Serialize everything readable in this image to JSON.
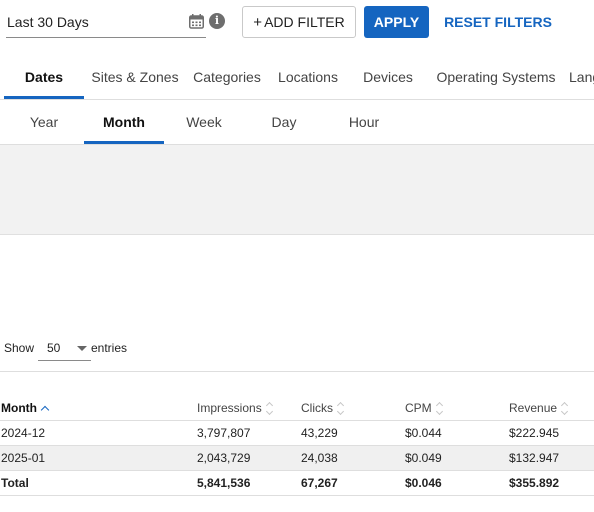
{
  "filters": {
    "date_range": "Last 30 Days",
    "calendar_icon": "calendar-icon",
    "info_icon": "info-icon",
    "info_glyph": "i",
    "add_filter_plus": "+",
    "add_filter_label": "ADD FILTER",
    "apply_label": "APPLY",
    "reset_label": "RESET FILTERS"
  },
  "tabs": [
    {
      "label": "Dates",
      "active": true
    },
    {
      "label": "Sites & Zones"
    },
    {
      "label": "Categories"
    },
    {
      "label": "Locations"
    },
    {
      "label": "Devices"
    },
    {
      "label": "Operating Systems"
    },
    {
      "label": "Lang"
    }
  ],
  "subtabs": [
    {
      "label": "Year"
    },
    {
      "label": "Month",
      "active": true
    },
    {
      "label": "Week"
    },
    {
      "label": "Day"
    },
    {
      "label": "Hour"
    }
  ],
  "entries": {
    "show_label": "Show",
    "value": "50",
    "entries_label": "entries"
  },
  "table": {
    "columns": [
      "Month",
      "Impressions",
      "Clicks",
      "CPM",
      "Revenue"
    ],
    "rows": [
      [
        "2024-12",
        "3,797,807",
        "43,229",
        "$0.044",
        "$222.945"
      ],
      [
        "2025-01",
        "2,043,729",
        "24,038",
        "$0.049",
        "$132.947"
      ]
    ],
    "total": [
      "Total",
      "5,841,536",
      "67,267",
      "$0.046",
      "$355.892"
    ]
  },
  "colors": {
    "accent": "#1565c0",
    "alt_row": "#f0f0f0",
    "chart_area": "#f2f2f2"
  }
}
